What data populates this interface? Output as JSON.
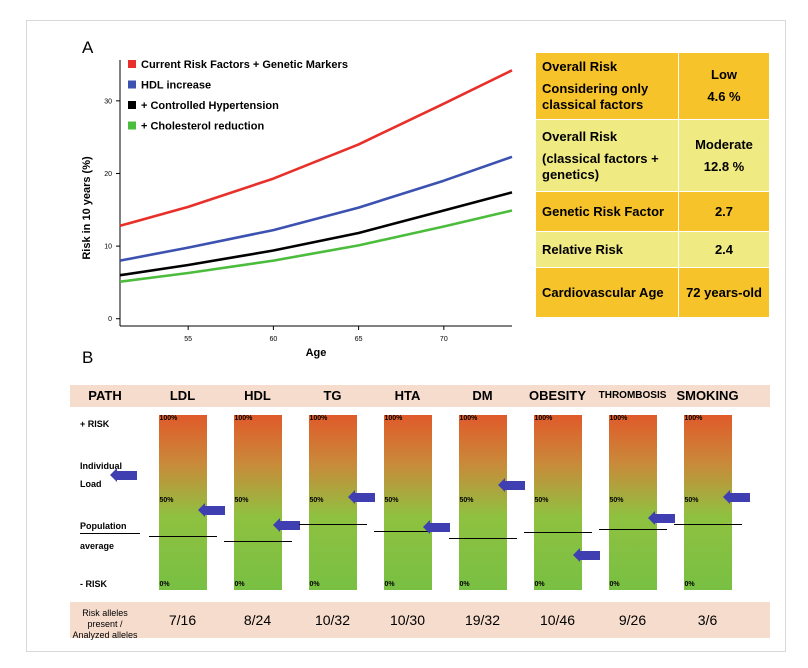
{
  "panel_a_label": "A",
  "panel_b_label": "B",
  "chart_data": {
    "type": "line",
    "title": "",
    "xlabel": "Age",
    "ylabel": "Risk in 10 years (%)",
    "xlim": [
      51,
      74
    ],
    "ylim": [
      -1,
      37
    ],
    "xticks": [
      55,
      60,
      65,
      70
    ],
    "yticks": [
      0,
      10,
      20,
      30
    ],
    "legend_position": "top-left",
    "series": [
      {
        "name": "Current Risk Factors + Genetic Markers",
        "color": "#e8302a",
        "x": [
          51,
          55,
          60,
          65,
          70,
          74
        ],
        "y": [
          12.8,
          15.4,
          19.3,
          24.0,
          29.6,
          34.2
        ]
      },
      {
        "name": "HDL increase",
        "color": "#3c52b0",
        "x": [
          51,
          55,
          60,
          65,
          70,
          74
        ],
        "y": [
          8.0,
          9.8,
          12.2,
          15.3,
          19.0,
          22.3
        ]
      },
      {
        "name": "+ Controlled Hypertension",
        "color": "#000000",
        "x": [
          51,
          55,
          60,
          65,
          70,
          74
        ],
        "y": [
          6.0,
          7.4,
          9.4,
          11.8,
          14.9,
          17.4
        ]
      },
      {
        "name": "+ Cholesterol reduction",
        "color": "#4cbc3c",
        "x": [
          51,
          55,
          60,
          65,
          70,
          74
        ],
        "y": [
          5.1,
          6.3,
          8.0,
          10.1,
          12.7,
          14.9
        ]
      }
    ]
  },
  "risk_table": [
    {
      "label": [
        "Overall Risk",
        "Considering only classical factors"
      ],
      "value": [
        "Low",
        "4.6 %"
      ],
      "color": "orange"
    },
    {
      "label": [
        "Overall Risk",
        "(classical factors + genetics)"
      ],
      "value": [
        "Moderate",
        "12.8 %"
      ],
      "color": "yellow"
    },
    {
      "label": [
        "Genetic Risk Factor"
      ],
      "value": [
        "2.7"
      ],
      "color": "orange"
    },
    {
      "label": [
        "Relative Risk"
      ],
      "value": [
        "2.4"
      ],
      "color": "yellow"
    },
    {
      "label": [
        "Cardiovascular Age"
      ],
      "value": [
        "72 years-old"
      ],
      "color": "orange"
    }
  ],
  "path_header": "PATH",
  "paths": [
    {
      "name": "LDL",
      "alleles": "7/16",
      "individual_load": 0.46,
      "population_avg": 0.31
    },
    {
      "name": "HDL",
      "alleles": "8/24",
      "individual_load": 0.37,
      "population_avg": 0.28
    },
    {
      "name": "TG",
      "alleles": "10/32",
      "individual_load": 0.53,
      "population_avg": 0.38
    },
    {
      "name": "HTA",
      "alleles": "10/30",
      "individual_load": 0.36,
      "population_avg": 0.34
    },
    {
      "name": "DM",
      "alleles": "19/32",
      "individual_load": 0.6,
      "population_avg": 0.3
    },
    {
      "name": "OBESITY",
      "alleles": "10/46",
      "individual_load": 0.2,
      "population_avg": 0.33
    },
    {
      "name": "THROMBOSIS",
      "alleles": "9/26",
      "individual_load": 0.41,
      "population_avg": 0.35
    },
    {
      "name": "SMOKING",
      "alleles": "3/6",
      "individual_load": 0.53,
      "population_avg": 0.38
    }
  ],
  "bar_pct_labels": {
    "top": "100%",
    "mid": "50%",
    "bottom": "0%"
  },
  "left_labels": {
    "plus_risk": "+ RISK",
    "individual_load": [
      "Individual",
      "Load"
    ],
    "population_average": [
      "Population",
      "average"
    ],
    "minus_risk": "- RISK"
  },
  "footer_label": [
    "Risk alleles",
    "present /",
    "Analyzed alleles"
  ],
  "colors": {
    "bar_top": "#e05a2a",
    "bar_bottom": "#78c043",
    "arrow": "#3f3fb2",
    "band": "#f6dccc",
    "table_orange": "#f7c32b",
    "table_yellow": "#f0ea82"
  },
  "icons": {
    "load_marker": "left-arrow-icon"
  }
}
